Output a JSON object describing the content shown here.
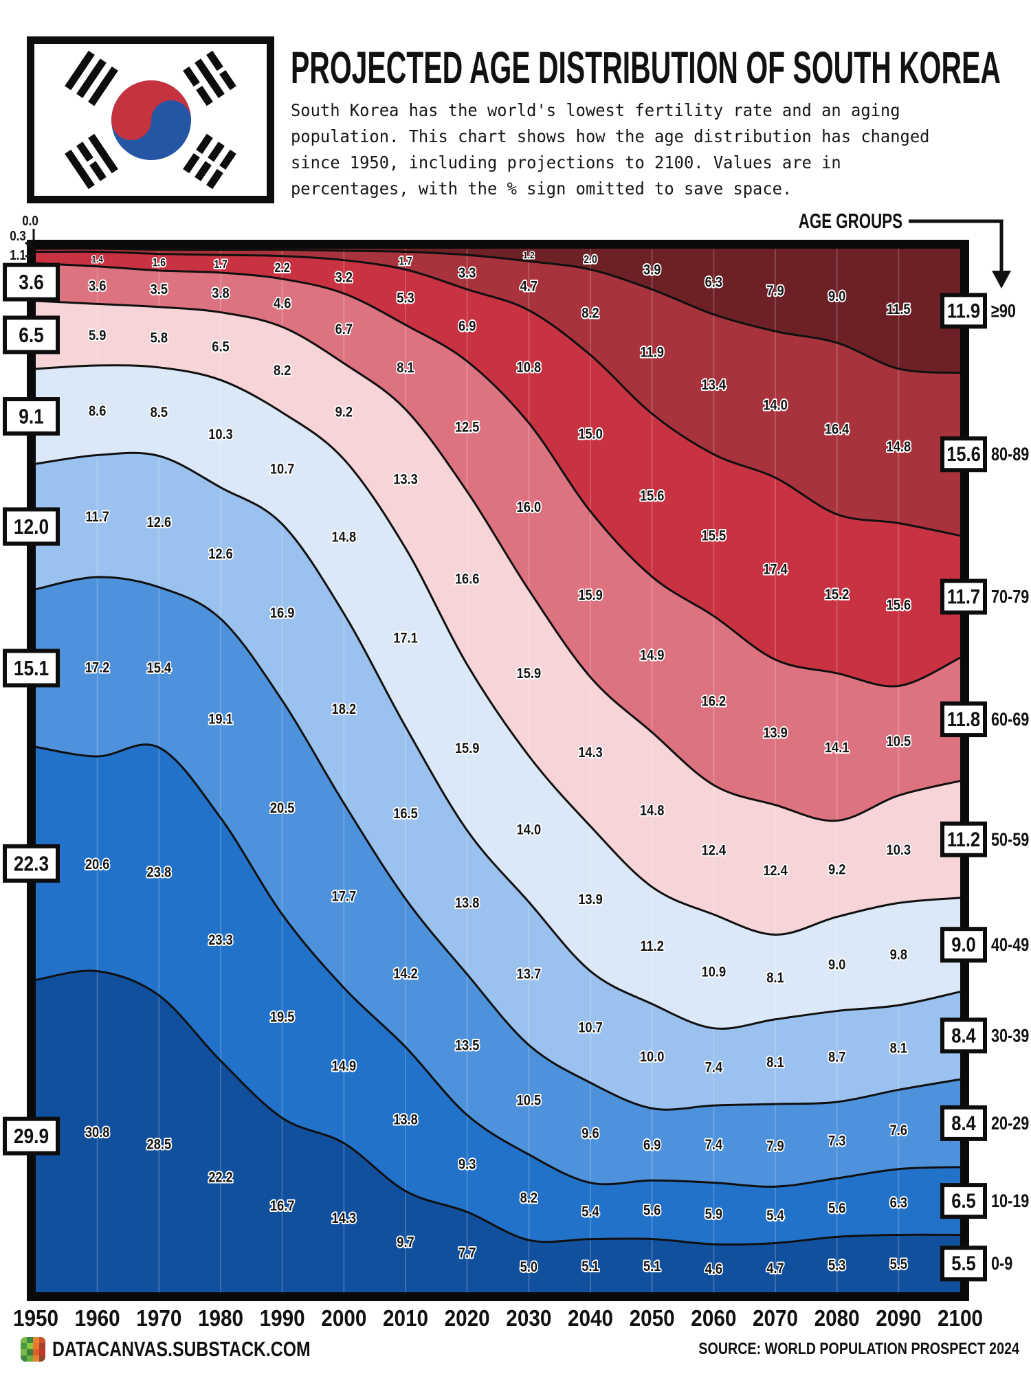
{
  "header": {
    "title": "PROJECTED AGE DISTRIBUTION OF SOUTH KOREA",
    "subtitle": "South Korea has the world's lowest fertility rate and an aging\npopulation. This chart shows how the age distribution has changed\nsince 1950, including projections to 2100. Values are in\npercentages, with the % sign omitted to save space."
  },
  "chart": {
    "age_groups_label": "AGE GROUPS"
  },
  "chart_data": {
    "type": "area",
    "stacked": true,
    "normalized_percent": true,
    "grid": "vertical-decade-lines",
    "years": [
      1950,
      1960,
      1970,
      1980,
      1990,
      2000,
      2010,
      2020,
      2030,
      2040,
      2050,
      2060,
      2070,
      2080,
      2090,
      2100
    ],
    "series": [
      {
        "name": "≥90",
        "color": "#6d2026",
        "values": [
          0.0,
          0.0,
          0.1,
          0.1,
          0.1,
          0.2,
          0.3,
          0.6,
          1.2,
          2.0,
          3.9,
          6.3,
          7.9,
          9.0,
          11.5,
          11.9
        ],
        "labels": [
          null,
          null,
          null,
          null,
          null,
          null,
          null,
          null,
          "1.2",
          "2.0",
          "3.9",
          "6.3",
          "7.9",
          "9.0",
          "11.5",
          null
        ]
      },
      {
        "name": "80-89",
        "color": "#a8333c",
        "values": [
          0.3,
          0.3,
          0.4,
          0.5,
          0.6,
          0.9,
          1.7,
          3.3,
          4.7,
          8.2,
          11.9,
          13.4,
          14.0,
          16.4,
          14.8,
          15.6
        ],
        "labels": [
          null,
          null,
          null,
          null,
          null,
          null,
          "1.7",
          "3.3",
          "4.7",
          "8.2",
          "11.9",
          "13.4",
          "14.0",
          "16.4",
          "14.8",
          null
        ]
      },
      {
        "name": "70-79",
        "color": "#c93241",
        "values": [
          1.1,
          1.4,
          1.6,
          1.7,
          2.2,
          3.2,
          5.3,
          6.9,
          10.8,
          15.0,
          15.6,
          15.5,
          17.4,
          15.2,
          15.6,
          11.7
        ],
        "labels": [
          null,
          "1.4",
          "1.6",
          "1.7",
          "2.2",
          "3.2",
          "5.3",
          "6.9",
          "10.8",
          "15.0",
          "15.6",
          "15.5",
          "17.4",
          "15.2",
          "15.6",
          null
        ]
      },
      {
        "name": "60-69",
        "color": "#dd7380",
        "values": [
          3.6,
          3.6,
          3.5,
          3.8,
          4.6,
          6.7,
          8.1,
          12.5,
          16.0,
          15.9,
          14.9,
          16.2,
          13.9,
          14.1,
          10.5,
          11.8
        ],
        "labels": [
          null,
          "3.6",
          "3.5",
          "3.8",
          "4.6",
          "6.7",
          "8.1",
          "12.5",
          "16.0",
          "15.9",
          "14.9",
          "16.2",
          "13.9",
          "14.1",
          "10.5",
          null
        ]
      },
      {
        "name": "50-59",
        "color": "#f6d4d8",
        "values": [
          6.5,
          5.9,
          5.8,
          6.5,
          8.2,
          9.2,
          13.3,
          16.6,
          15.9,
          14.3,
          14.8,
          12.4,
          12.4,
          9.2,
          10.3,
          11.2
        ],
        "labels": [
          null,
          "5.9",
          "5.8",
          "6.5",
          "8.2",
          "9.2",
          "13.3",
          "16.6",
          "15.9",
          "14.3",
          "14.8",
          "12.4",
          "12.4",
          "9.2",
          "10.3",
          null
        ]
      },
      {
        "name": "40-49",
        "color": "#dbe8f7",
        "values": [
          9.1,
          8.6,
          8.5,
          10.3,
          10.7,
          14.8,
          17.1,
          15.9,
          14.0,
          13.9,
          11.2,
          10.9,
          8.1,
          9.0,
          9.8,
          9.0
        ],
        "labels": [
          null,
          "8.6",
          "8.5",
          "10.3",
          "10.7",
          "14.8",
          "17.1",
          "15.9",
          "14.0",
          "13.9",
          "11.2",
          "10.9",
          "8.1",
          "9.0",
          "9.8",
          null
        ]
      },
      {
        "name": "30-39",
        "color": "#9bc2ee",
        "values": [
          12.0,
          11.7,
          12.6,
          12.6,
          16.9,
          18.2,
          16.5,
          13.8,
          13.7,
          10.7,
          10.0,
          7.4,
          8.1,
          8.7,
          8.1,
          8.4
        ],
        "labels": [
          null,
          "11.7",
          "12.6",
          "12.6",
          "16.9",
          "18.2",
          "16.5",
          "13.8",
          "13.7",
          "10.7",
          "10.0",
          "7.4",
          "8.1",
          "8.7",
          "8.1",
          null
        ]
      },
      {
        "name": "20-29",
        "color": "#4e92db",
        "values": [
          15.1,
          17.2,
          15.4,
          19.1,
          20.5,
          17.7,
          14.2,
          13.5,
          10.5,
          9.6,
          6.9,
          7.4,
          7.9,
          7.3,
          7.6,
          8.4
        ],
        "labels": [
          null,
          "17.2",
          "15.4",
          "19.1",
          "20.5",
          "17.7",
          "14.2",
          "13.5",
          "10.5",
          "9.6",
          "6.9",
          "7.4",
          "7.9",
          "7.3",
          "7.6",
          null
        ]
      },
      {
        "name": "10-19",
        "color": "#2272ca",
        "values": [
          22.3,
          20.6,
          23.8,
          23.3,
          19.5,
          14.9,
          13.8,
          9.3,
          8.2,
          5.4,
          5.6,
          5.9,
          5.4,
          5.6,
          6.3,
          6.5
        ],
        "labels": [
          null,
          "20.6",
          "23.8",
          "23.3",
          "19.5",
          "14.9",
          "13.8",
          "9.3",
          "8.2",
          "5.4",
          "5.6",
          "5.9",
          "5.4",
          "5.6",
          "6.3",
          null
        ]
      },
      {
        "name": "0-9",
        "color": "#11509d",
        "values": [
          29.9,
          30.8,
          28.5,
          22.2,
          16.7,
          14.3,
          9.7,
          7.7,
          5.0,
          5.1,
          5.1,
          4.6,
          4.7,
          5.3,
          5.5,
          5.5
        ],
        "labels": [
          null,
          "30.8",
          "28.5",
          "22.2",
          "16.7",
          "14.3",
          "9.7",
          "7.7",
          "5.0",
          "5.1",
          "5.1",
          "4.6",
          "4.7",
          "5.3",
          "5.5",
          null
        ]
      }
    ],
    "left_axis": {
      "small": [
        "0.0",
        "0.3",
        "1.1"
      ],
      "boxed": [
        "3.6",
        "6.5",
        "9.1",
        "12.0",
        "15.1",
        "22.3",
        "29.9"
      ]
    },
    "right_axis": [
      {
        "box": "11.9",
        "group": "≥90"
      },
      {
        "box": "15.6",
        "group": "80-89"
      },
      {
        "box": "11.7",
        "group": "70-79"
      },
      {
        "box": "11.8",
        "group": "60-69"
      },
      {
        "box": "11.2",
        "group": "50-59"
      },
      {
        "box": "9.0",
        "group": "40-49"
      },
      {
        "box": "8.4",
        "group": "30-39"
      },
      {
        "box": "8.4",
        "group": "20-29"
      },
      {
        "box": "6.5",
        "group": "10-19"
      },
      {
        "box": "5.5",
        "group": "0-9"
      }
    ],
    "x_ticks": [
      "1950",
      "1960",
      "1970",
      "1980",
      "1990",
      "2000",
      "2010",
      "2020",
      "2030",
      "2040",
      "2050",
      "2060",
      "2070",
      "2080",
      "2090",
      "2100"
    ]
  },
  "footer": {
    "left": "DATACANVAS.SUBSTACK.COM",
    "right": "SOURCE: WORLD POPULATION PROSPECT 2024"
  }
}
